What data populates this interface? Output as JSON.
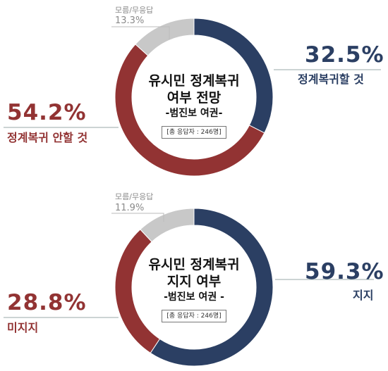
{
  "colors": {
    "yes": "#2b3f63",
    "no": "#923333",
    "unknown": "#c8c8c8"
  },
  "chart_data": [
    {
      "type": "pie",
      "title_line1": "유시민 정계복귀",
      "title_line2": "여부 전망",
      "edition": "-범진보 여권-",
      "sample": "[총 응답자 : 246명]",
      "slices": [
        {
          "name": "정계복귀할 것",
          "value": 32.5,
          "label": "32.5%"
        },
        {
          "name": "정계복귀 안할 것",
          "value": 54.2,
          "label": "54.2%"
        },
        {
          "name": "모름/무응답",
          "value": 13.3,
          "label": "13.3%"
        }
      ]
    },
    {
      "type": "pie",
      "title_line1": "유시민 정계복귀",
      "title_line2": "지지 여부",
      "edition": "-범진보 여권 -",
      "sample": "[총 응답자 : 246명]",
      "slices": [
        {
          "name": "지지",
          "value": 59.3,
          "label": "59.3%"
        },
        {
          "name": "미지지",
          "value": 28.8,
          "label": "28.8%"
        },
        {
          "name": "모름/무응답",
          "value": 11.9,
          "label": "11.9%"
        }
      ]
    }
  ]
}
